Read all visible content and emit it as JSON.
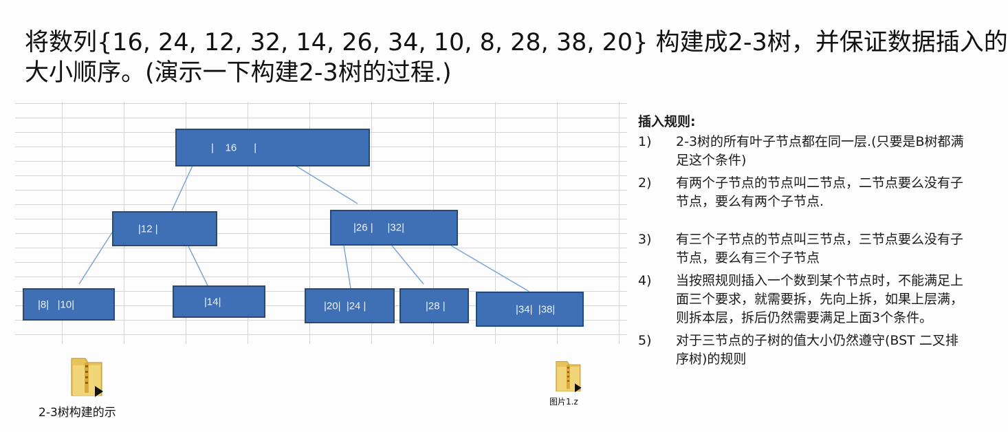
{
  "title": {
    "line1": "将数列{16, 24, 12, 32, 14, 26, 34, 10, 8, 28, 38, 20} 构建成2-3树，并保证数据插入的",
    "line2": "大小顺序。(演示一下构建2-3树的过程.)"
  },
  "tree": {
    "nodes": [
      {
        "id": "n16",
        "label": "|    16      |"
      },
      {
        "id": "n12",
        "label": "|12 |"
      },
      {
        "id": "n26-32",
        "label": "|26 |     |32|"
      },
      {
        "id": "n8-10",
        "label": "|8|   |10|"
      },
      {
        "id": "n14",
        "label": "|14|"
      },
      {
        "id": "n20-24",
        "label": "|20|  |24 |"
      },
      {
        "id": "n28",
        "label": "|28 |"
      },
      {
        "id": "n34-38",
        "label": "|34|  |38|"
      }
    ],
    "edges": [
      [
        "n16",
        "n12"
      ],
      [
        "n16",
        "n26-32"
      ],
      [
        "n12",
        "n8-10"
      ],
      [
        "n12",
        "n14"
      ],
      [
        "n26-32",
        "n20-24"
      ],
      [
        "n26-32",
        "n28"
      ],
      [
        "n26-32",
        "n34-38"
      ]
    ],
    "node_color": "#3f6fb4",
    "line_color": "#7aa6d6"
  },
  "rules": {
    "title": "插入规则:",
    "items": [
      {
        "num": "1)",
        "text": "2-3树的所有叶子节点都在同一层.(只要是B树都满足这个条件)"
      },
      {
        "num": "2)",
        "text": "有两个子节点的节点叫二节点，二节点要么没有子节点，要么有两个子节点."
      },
      {
        "num": "3)",
        "text": "有三个子节点的节点叫三节点，三节点要么没有子节点，要么有三个子节点"
      },
      {
        "num": "4)",
        "text": "当按照规则插入一个数到某个节点时，不能满足上面三个要求，就需要拆，先向上拆，如果上层满，则拆本层，拆后仍然需要满足上面3个条件。"
      },
      {
        "num": "5)",
        "text": "对于三节点的子树的值大小仍然遵守(BST 二叉排序树)的规则"
      }
    ]
  },
  "files": [
    {
      "name": "2-3树构建的示",
      "icon": "zip-folder-icon"
    },
    {
      "name": "图片1.z",
      "icon": "zip-folder-icon"
    }
  ]
}
